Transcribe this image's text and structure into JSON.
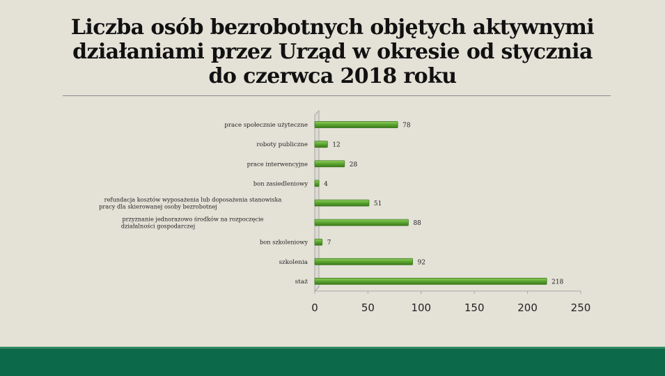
{
  "slide": {
    "title_lines": [
      "Liczba osób bezrobotnych objętych aktywnymi",
      "działaniami przez Urząd w okresie od stycznia",
      "do czerwca 2018 roku"
    ]
  },
  "colors": {
    "background": "#e4e1d7",
    "bar": "#5fa733",
    "footer": "#0c6a4b"
  },
  "chart_data": {
    "type": "bar",
    "orientation": "horizontal",
    "categories": [
      "prace społecznie użyteczne",
      "roboty publiczne",
      "prace interwencyjne",
      "bon zasiedleniowy",
      "refundacja kosztów wyposażenia lub doposażenia stanowiska pracy dla skierowanej osoby bezrobotnej",
      "przyznanie jednorazowo środków na rozpoczęcie działalności gospodarczej",
      "bon szkoleniowy",
      "szkolenia",
      "staż"
    ],
    "values": [
      78,
      12,
      28,
      4,
      51,
      88,
      7,
      92,
      218
    ],
    "xlim": [
      0,
      250
    ],
    "x_ticks": [
      "0",
      "50",
      "100",
      "150",
      "200",
      "250"
    ],
    "grid": false,
    "legend": "none"
  }
}
